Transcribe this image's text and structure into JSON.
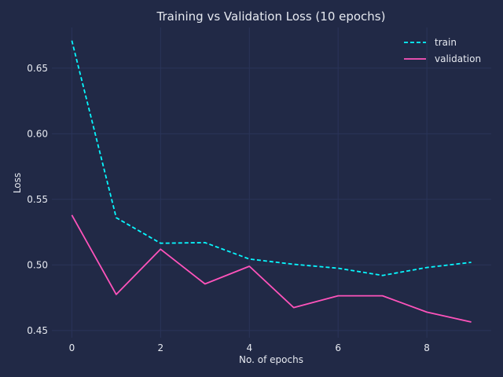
{
  "chart_data": {
    "type": "line",
    "title": "Training vs Validation Loss (10 epochs)",
    "xlabel": "No. of epochs",
    "ylabel": "Loss",
    "x": [
      0,
      1,
      2,
      3,
      4,
      5,
      6,
      7,
      8,
      9
    ],
    "series": [
      {
        "name": "train",
        "values": [
          0.671,
          0.536,
          0.5165,
          0.517,
          0.5045,
          0.5005,
          0.4975,
          0.492,
          0.498,
          0.502
        ],
        "color": "#08f7fe",
        "style": "dashed"
      },
      {
        "name": "validation",
        "values": [
          0.538,
          0.4775,
          0.512,
          0.4855,
          0.499,
          0.4675,
          0.4765,
          0.4765,
          0.464,
          0.4565
        ],
        "color": "#fe53bb",
        "style": "solid"
      }
    ],
    "xlim": [
      -0.45,
      9.45
    ],
    "ylim": [
      0.4445,
      0.681
    ],
    "x_ticks": [
      "0",
      "2",
      "4",
      "6",
      "8"
    ],
    "y_ticks": [
      "0.45",
      "0.50",
      "0.55",
      "0.60",
      "0.65"
    ],
    "grid": true,
    "legend_position": "top-right"
  },
  "colors": {
    "background": "#212946",
    "grid": "#2a3459",
    "text": "#e6e9f0"
  }
}
